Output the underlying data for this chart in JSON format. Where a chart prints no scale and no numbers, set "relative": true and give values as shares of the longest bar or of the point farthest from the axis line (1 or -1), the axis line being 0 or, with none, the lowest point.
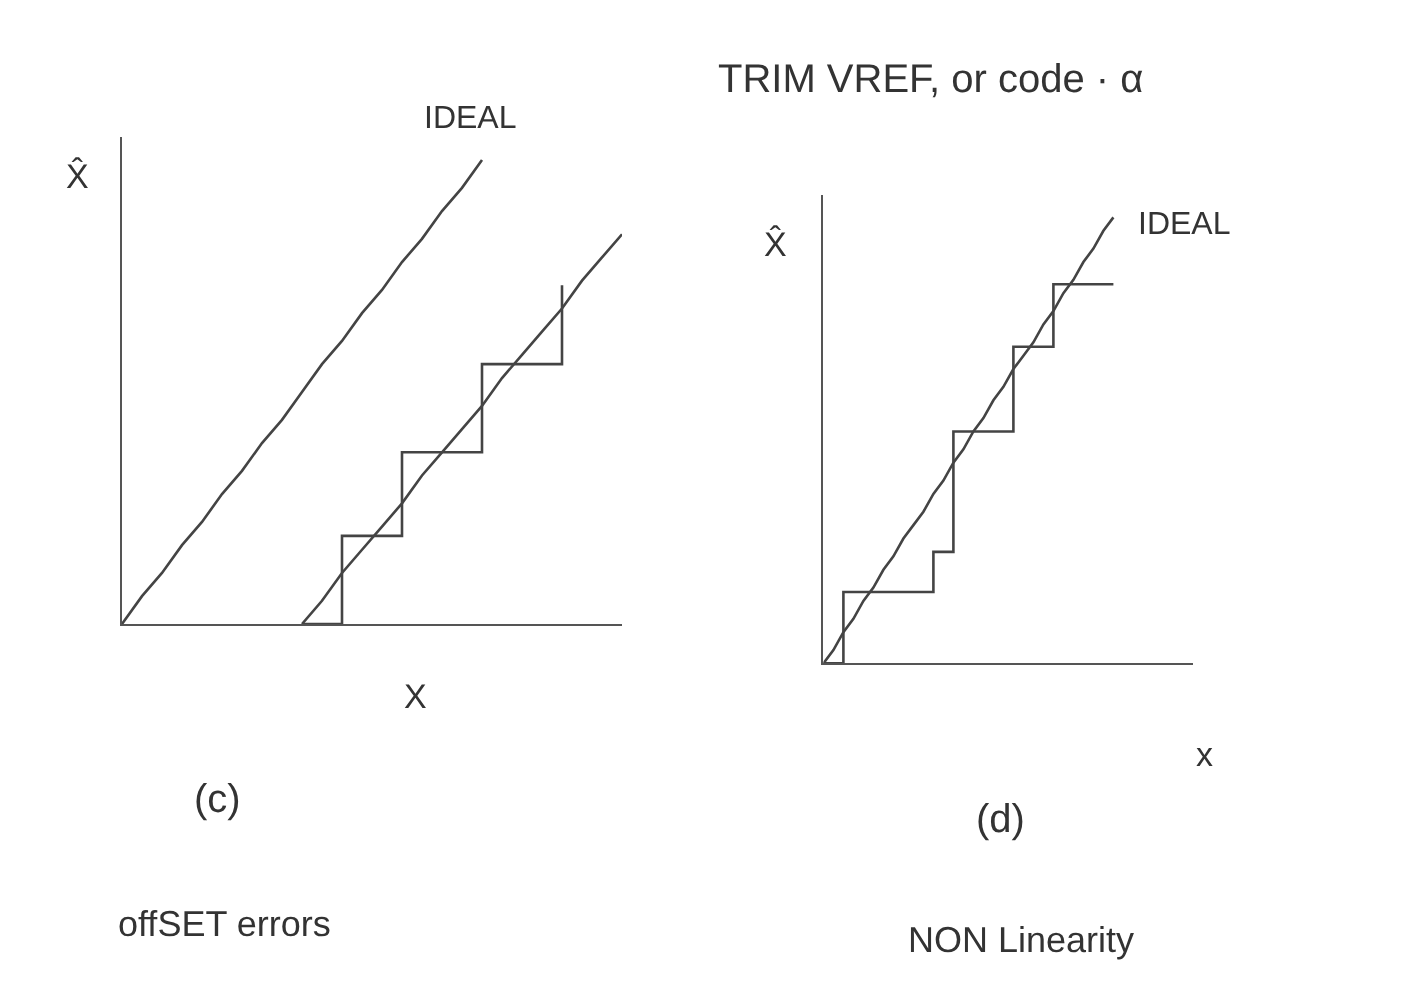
{
  "chart_data": [
    {
      "type": "line",
      "relative": true,
      "title": "(c)",
      "subtitle": "offSET errors",
      "xlabel": "X",
      "ylabel": "X̂",
      "categories": [
        null,
        null,
        null,
        null,
        null,
        null,
        null,
        null,
        null,
        null,
        null,
        null,
        null,
        null,
        null,
        null,
        null,
        null,
        null,
        null,
        null,
        null,
        null,
        null,
        null,
        null
      ],
      "series": [
        {
          "name": "IDEAL",
          "color": "#444444",
          "values": [
            0,
            0.06,
            0.11,
            0.17,
            0.22,
            0.28,
            0.33,
            0.39,
            0.44,
            0.5,
            0.56,
            0.61,
            0.67,
            0.72,
            0.78,
            0.83,
            0.89,
            0.94,
            1,
            null,
            null,
            null,
            null,
            null,
            null,
            null
          ]
        },
        {
          "color": "#444444",
          "values": [
            null,
            null,
            null,
            null,
            null,
            null,
            null,
            null,
            null,
            0,
            0.05,
            0.11,
            0.16,
            0.21,
            0.26,
            0.32,
            0.37,
            0.42,
            0.47,
            0.53,
            0.58,
            0.63,
            0.68,
            0.74,
            0.79,
            0.84
          ]
        },
        {
          "type": "step",
          "color": "#444444",
          "values": [
            null,
            null,
            null,
            null,
            null,
            null,
            null,
            null,
            null,
            0,
            0,
            0.19,
            0.19,
            0.19,
            0.37,
            0.37,
            0.37,
            0.37,
            0.56,
            0.56,
            0.56,
            0.56,
            0.73,
            null,
            null,
            null
          ]
        }
      ]
    },
    {
      "type": "line",
      "relative": true,
      "title": "(d)",
      "subtitle": "NON Linearity",
      "xlabel": "x",
      "ylabel": "X̂",
      "annotations": [
        "TRIM VREF, or code · α"
      ],
      "categories": [
        null,
        null,
        null,
        null,
        null,
        null,
        null,
        null,
        null,
        null,
        null,
        null,
        null,
        null,
        null,
        null,
        null,
        null,
        null,
        null,
        null,
        null,
        null,
        null,
        null,
        null,
        null,
        null,
        null,
        null,
        null,
        null,
        null,
        null,
        null,
        null,
        null,
        null
      ],
      "series": [
        {
          "name": "IDEAL",
          "color": "#444444",
          "values": [
            0,
            0.03,
            0.07,
            0.1,
            0.14,
            0.17,
            0.21,
            0.24,
            0.28,
            0.31,
            0.34,
            0.38,
            0.41,
            0.45,
            0.48,
            0.52,
            0.55,
            0.59,
            0.62,
            0.66,
            0.69,
            0.72,
            0.76,
            0.79,
            0.83,
            0.86,
            0.9,
            0.93,
            0.97,
            1,
            null,
            null,
            null,
            null,
            null,
            null,
            null,
            null
          ]
        },
        {
          "type": "step",
          "color": "#444444",
          "values": [
            0,
            0,
            0.16,
            0.16,
            0.16,
            0.16,
            0.16,
            0.16,
            0.16,
            0.16,
            0.16,
            0.25,
            0.25,
            0.52,
            0.52,
            0.52,
            0.52,
            0.52,
            0.52,
            0.71,
            0.71,
            0.71,
            0.71,
            0.85,
            0.85,
            0.85,
            0.85,
            0.85,
            0.85,
            0.85,
            null,
            null,
            null,
            null,
            null,
            null,
            null,
            null
          ]
        }
      ]
    }
  ]
}
